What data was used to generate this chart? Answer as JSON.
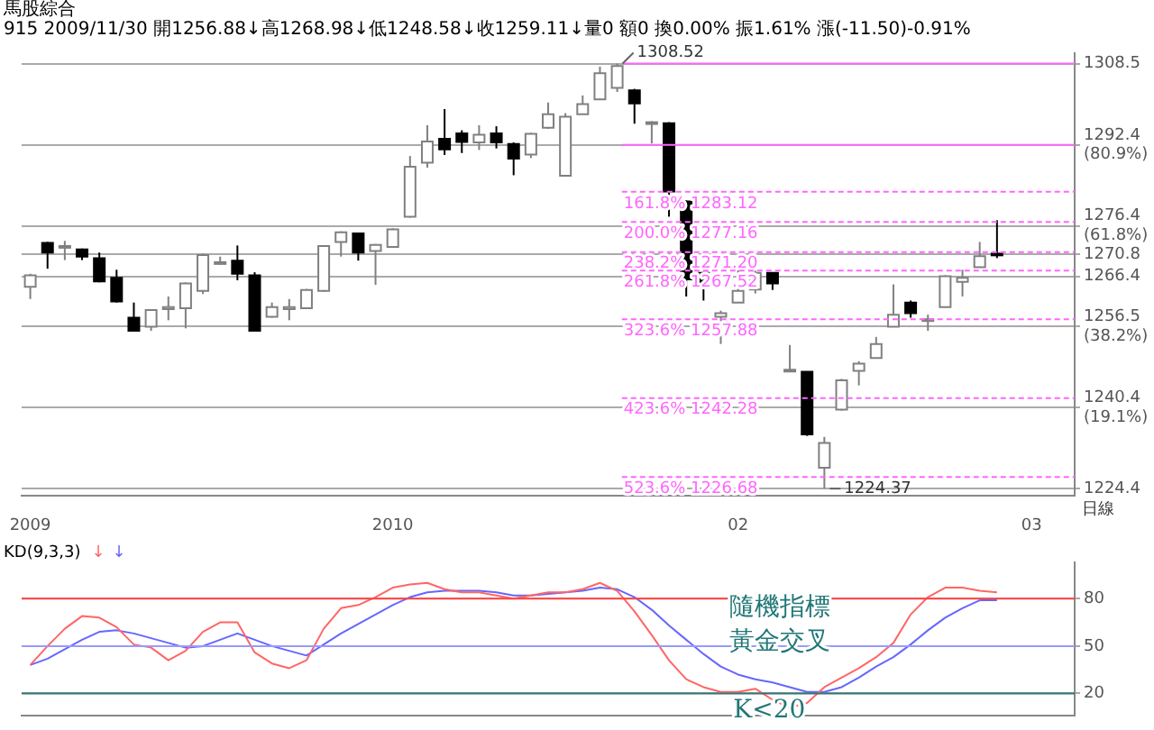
{
  "chart_data": [
    {
      "type": "candlestick",
      "title": "馬股綜合",
      "subtitle": "915 2009/11/30 開1256.88↓高1268.98↓低1248.58↓收1259.11↓量0 額0 換0.00% 振1.61% 漲(-11.50)-0.91%",
      "xlabel": "日線",
      "categories": [
        "2009",
        null,
        null,
        null,
        null,
        null,
        null,
        null,
        null,
        null,
        null,
        null,
        null,
        null,
        null,
        null,
        null,
        null,
        null,
        null,
        null,
        "2010",
        null,
        null,
        null,
        null,
        null,
        null,
        null,
        null,
        null,
        null,
        null,
        null,
        null,
        null,
        null,
        null,
        null,
        null,
        null,
        "02",
        null,
        null,
        null,
        null,
        null,
        null,
        null,
        null,
        null,
        null,
        null,
        null,
        null,
        null,
        null,
        null,
        "03",
        null,
        null
      ],
      "ohlc": [
        [
          1264.3,
          1266.9,
          1261.9,
          1266.6
        ],
        [
          1273.0,
          1273.2,
          1267.9,
          1271.1
        ],
        [
          1272.4,
          1273.4,
          1269.6,
          1272.4
        ],
        [
          1271.7,
          1271.9,
          1269.6,
          1270.3
        ],
        [
          1270.0,
          1271.1,
          1265.2,
          1265.4
        ],
        [
          1266.1,
          1267.7,
          1261.2,
          1261.4
        ],
        [
          1258.2,
          1261.2,
          1255.6,
          1255.6
        ],
        [
          1256.4,
          1259.9,
          1255.6,
          1259.7
        ],
        [
          1259.9,
          1262.4,
          1257.7,
          1260.3
        ],
        [
          1260.1,
          1265.2,
          1256.1,
          1265.0
        ],
        [
          1263.5,
          1270.9,
          1262.9,
          1270.6
        ],
        [
          1269.2,
          1270.3,
          1268.7,
          1269.2
        ],
        [
          1269.5,
          1272.5,
          1265.6,
          1266.9
        ],
        [
          1266.6,
          1267.2,
          1255.6,
          1255.6
        ],
        [
          1258.4,
          1261.2,
          1258.2,
          1260.3
        ],
        [
          1259.9,
          1261.9,
          1257.7,
          1260.3
        ],
        [
          1260.1,
          1263.9,
          1259.9,
          1263.7
        ],
        [
          1263.5,
          1272.5,
          1263.3,
          1272.4
        ],
        [
          1273.2,
          1275.3,
          1270.3,
          1275.1
        ],
        [
          1274.9,
          1274.9,
          1269.5,
          1271.1
        ],
        [
          1271.4,
          1272.8,
          1264.7,
          1272.6
        ],
        [
          1272.2,
          1275.9,
          1272.1,
          1275.7
        ],
        [
          1278.2,
          1290.2,
          1278.0,
          1288.1
        ],
        [
          1288.9,
          1296.3,
          1287.9,
          1293.1
        ],
        [
          1293.6,
          1299.5,
          1290.4,
          1291.5
        ],
        [
          1294.7,
          1295.3,
          1290.8,
          1293.0
        ],
        [
          1292.9,
          1296.3,
          1291.4,
          1294.4
        ],
        [
          1294.7,
          1296.1,
          1291.7,
          1292.9
        ],
        [
          1292.6,
          1292.9,
          1286.4,
          1289.7
        ],
        [
          1290.5,
          1294.8,
          1289.8,
          1294.6
        ],
        [
          1295.8,
          1300.8,
          1295.6,
          1298.5
        ],
        [
          1286.3,
          1298.7,
          1286.3,
          1298.0
        ],
        [
          1298.5,
          1302.2,
          1298.5,
          1300.5
        ],
        [
          1301.4,
          1307.9,
          1301.4,
          1306.6
        ],
        [
          1303.7,
          1308.52,
          1302.9,
          1308.0
        ],
        [
          1303.2,
          1303.5,
          1296.6,
          1300.6
        ],
        [
          1296.9,
          1297.1,
          1292.7,
          1296.9
        ],
        [
          1296.7,
          1296.9,
          1278.2,
          1283.2
        ],
        [
          1281.2,
          1281.4,
          1262.4,
          1265.8
        ],
        [
          1267.1,
          1267.2,
          1261.6,
          1264.5
        ],
        [
          1258.4,
          1259.6,
          1253.0,
          1259.1
        ],
        [
          1261.2,
          1267.9,
          1261.2,
          1263.5
        ],
        [
          1263.8,
          1267.5,
          1263.0,
          1267.1
        ],
        [
          1267.1,
          1267.2,
          1263.7,
          1265.0
        ],
        [
          1247.9,
          1252.8,
          1247.7,
          1247.9
        ],
        [
          1247.5,
          1247.5,
          1234.8,
          1235.1
        ],
        [
          1228.5,
          1234.6,
          1224.37,
          1233.4
        ],
        [
          1240.0,
          1246.1,
          1239.8,
          1245.8
        ],
        [
          1247.7,
          1249.6,
          1244.8,
          1249.1
        ],
        [
          1250.2,
          1254.4,
          1250.2,
          1253.0
        ],
        [
          1256.4,
          1264.8,
          1256.4,
          1258.8
        ],
        [
          1261.2,
          1261.6,
          1258.2,
          1259.1
        ],
        [
          1257.9,
          1258.8,
          1255.6,
          1257.9
        ],
        [
          1260.3,
          1266.6,
          1260.3,
          1266.4
        ],
        [
          1265.3,
          1267.7,
          1262.4,
          1266.1
        ],
        [
          1268.2,
          1273.2,
          1268.2,
          1270.4
        ],
        [
          1270.9,
          1277.5,
          1270.0,
          1270.8
        ],
        null,
        null,
        null,
        null
      ],
      "ylim": [
        1222.9,
        1310.6
      ],
      "yticks": [
        1308.5,
        {
          "value": 1292.4,
          "label": "1292.4\n(80.9%)"
        },
        {
          "value": 1276.4,
          "label": "1276.4\n(61.8%)"
        },
        1270.8,
        1266.4,
        {
          "value": 1256.5,
          "label": "1256.5\n(38.2%)"
        },
        {
          "value": 1240.4,
          "label": "1240.4\n(19.1%)"
        },
        1224.4
      ],
      "grid": "y",
      "ref_lines": [
        {
          "axis": "y",
          "value": 1308.5,
          "color": "#ff66ff",
          "line_style": "solid"
        },
        {
          "axis": "y",
          "value": 1292.4,
          "color": "#ff66ff",
          "line_style": "solid"
        },
        {
          "axis": "y",
          "value": 1283.12,
          "label": "161.8% 1283.12",
          "color": "#ff66ff",
          "line_style": "dashed"
        },
        {
          "axis": "y",
          "value": 1277.16,
          "label": "200.0% 1277.16",
          "color": "#ff66ff",
          "line_style": "dashed"
        },
        {
          "axis": "y",
          "value": 1271.2,
          "label": "238.2% 1271.20",
          "color": "#ff66ff",
          "line_style": "dashed"
        },
        {
          "axis": "y",
          "value": 1267.52,
          "label": "261.8% 1267.52",
          "color": "#ff66ff",
          "line_style": "dashed"
        },
        {
          "axis": "y",
          "value": 1257.88,
          "label": "323.6% 1257.88",
          "color": "#ff66ff",
          "line_style": "dashed"
        },
        {
          "axis": "y",
          "value": 1242.28,
          "label": "423.6% 1242.28",
          "color": "#ff66ff",
          "line_style": "dashed"
        },
        {
          "axis": "y",
          "value": 1226.68,
          "label": "523.6% 1226.68",
          "color": "#ff66ff",
          "line_style": "dashed"
        }
      ],
      "annotations": [
        "1308.52",
        "1224.37"
      ]
    },
    {
      "type": "line",
      "title": "KD(9,3,3)",
      "legend": "top left",
      "tick_labels": "y",
      "grid": "y",
      "categories": [
        null,
        null,
        null,
        null,
        null,
        null,
        null,
        null,
        null,
        null,
        null,
        null,
        null,
        null,
        null,
        null,
        null,
        null,
        null,
        null,
        null,
        null,
        null,
        null,
        null,
        null,
        null,
        null,
        null,
        null,
        null,
        null,
        null,
        null,
        null,
        null,
        null,
        null,
        null,
        null,
        null,
        null,
        null,
        null,
        null,
        null,
        null,
        null,
        null,
        null,
        null,
        null,
        null,
        null,
        null,
        null,
        null,
        null,
        null,
        null,
        null
      ],
      "series": [
        {
          "name": "↓",
          "color": "#ff6666",
          "values": [
            38,
            50,
            61,
            69,
            68,
            62,
            51,
            49,
            41,
            47,
            59,
            65,
            65,
            46,
            39,
            36,
            41,
            61,
            74,
            76,
            81,
            87,
            89,
            90,
            86,
            84,
            84,
            82,
            80,
            82,
            84,
            84,
            86,
            90,
            85,
            72,
            57,
            41,
            29,
            24,
            21,
            21,
            23,
            16,
            11,
            14,
            24,
            30,
            36,
            43,
            52,
            70,
            81,
            87,
            87,
            85,
            84,
            null,
            null,
            null,
            null
          ]
        },
        {
          "name": "↓",
          "color": "#6666ff",
          "values": [
            38,
            42,
            48,
            54,
            59,
            60,
            58,
            55,
            52,
            49,
            50,
            54,
            58,
            54,
            50,
            47,
            44,
            51,
            58,
            64,
            70,
            76,
            81,
            84,
            85,
            85,
            85,
            84,
            82,
            82,
            83,
            84,
            85,
            87,
            86,
            81,
            73,
            63,
            54,
            45,
            37,
            32,
            29,
            27,
            24,
            21,
            21,
            24,
            30,
            37,
            43,
            51,
            60,
            68,
            74,
            79,
            79,
            null,
            null,
            null,
            null
          ]
        }
      ],
      "ylim": [
        6,
        103
      ],
      "yticks": [
        20,
        50,
        80
      ],
      "ref_lines": [
        {
          "axis": "y",
          "value": 80,
          "color": "#ff4444",
          "line_style": "solid"
        },
        {
          "axis": "y",
          "value": 50,
          "color": "#9999ff",
          "line_style": "solid"
        },
        {
          "axis": "y",
          "value": 20,
          "color": "#337777",
          "line_style": "solid"
        }
      ],
      "annotations": [
        "隨機指標",
        "黃金交叉",
        "K<20"
      ]
    }
  ]
}
